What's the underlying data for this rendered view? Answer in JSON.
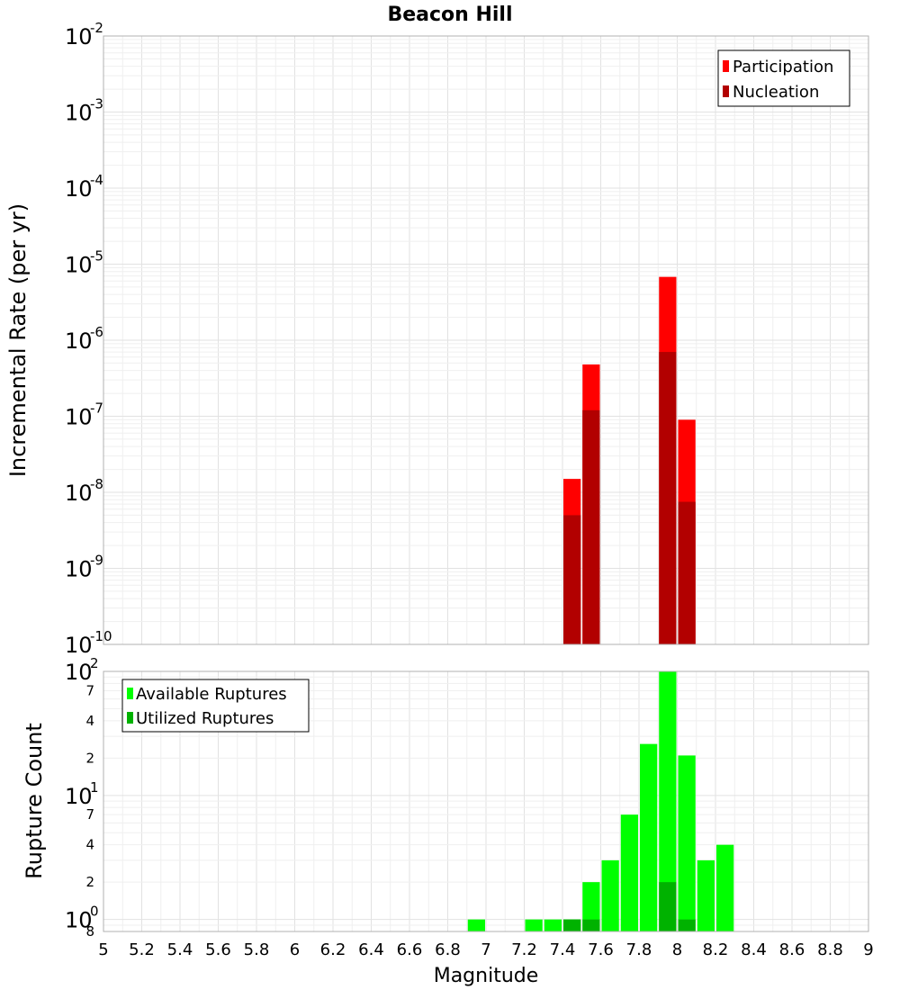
{
  "chart_data": [
    {
      "type": "bar",
      "title": "Beacon Hill",
      "xlabel": "",
      "ylabel": "Incremental Rate (per yr)",
      "yscale": "log",
      "ylim": [
        1e-10,
        0.01
      ],
      "xlim": [
        5,
        9
      ],
      "y_major_ticks": [
        {
          "base": "10",
          "exp": "-10",
          "value": 1e-10
        },
        {
          "base": "10",
          "exp": "-9",
          "value": 1e-09
        },
        {
          "base": "10",
          "exp": "-8",
          "value": 1e-08
        },
        {
          "base": "10",
          "exp": "-7",
          "value": 1e-07
        },
        {
          "base": "10",
          "exp": "-6",
          "value": 1e-06
        },
        {
          "base": "10",
          "exp": "-5",
          "value": 1e-05
        },
        {
          "base": "10",
          "exp": "-4",
          "value": 0.0001
        },
        {
          "base": "10",
          "exp": "-3",
          "value": 0.001
        },
        {
          "base": "10",
          "exp": "-2",
          "value": 0.01
        }
      ],
      "grid": true,
      "legend_position": "top-right",
      "bar_width": 0.1,
      "series": [
        {
          "name": "Participation",
          "color": "#ff0000",
          "x": [
            7.45,
            7.55,
            7.95,
            8.05
          ],
          "values": [
            1.5e-08,
            4.8e-07,
            6.8e-06,
            9e-08
          ]
        },
        {
          "name": "Nucleation",
          "color": "#b20000",
          "x": [
            7.45,
            7.55,
            7.95,
            8.05
          ],
          "values": [
            5e-09,
            1.2e-07,
            7e-07,
            7.5e-09
          ]
        }
      ]
    },
    {
      "type": "bar",
      "title": "",
      "xlabel": "Magnitude",
      "ylabel": "Rupture Count",
      "yscale": "log",
      "ylim": [
        0.8,
        100
      ],
      "xlim": [
        5,
        9
      ],
      "x_ticks": [
        "5",
        "5.2",
        "5.4",
        "5.6",
        "5.8",
        "6",
        "6.2",
        "6.4",
        "6.6",
        "6.8",
        "7",
        "7.2",
        "7.4",
        "7.6",
        "7.8",
        "8",
        "8.2",
        "8.4",
        "8.6",
        "8.8",
        "9"
      ],
      "y_major_ticks": [
        {
          "base": "10",
          "exp": "0",
          "value": 1
        },
        {
          "base": "10",
          "exp": "1",
          "value": 10
        },
        {
          "base": "10",
          "exp": "2",
          "value": 100
        }
      ],
      "y_minor_labels": [
        {
          "label": "8",
          "value": 0.8
        },
        {
          "label": "2",
          "value": 2
        },
        {
          "label": "4",
          "value": 4
        },
        {
          "label": "7",
          "value": 7
        },
        {
          "label": "2",
          "value": 20
        },
        {
          "label": "4",
          "value": 40
        },
        {
          "label": "7",
          "value": 70
        }
      ],
      "grid": true,
      "legend_position": "top-left",
      "bar_width": 0.1,
      "series": [
        {
          "name": "Available Ruptures",
          "color": "#00ff00",
          "x": [
            6.95,
            7.25,
            7.35,
            7.45,
            7.55,
            7.65,
            7.75,
            7.85,
            7.95,
            8.05,
            8.15,
            8.25
          ],
          "values": [
            1,
            1,
            1,
            1,
            2,
            3,
            7,
            26,
            100,
            21,
            3,
            4
          ]
        },
        {
          "name": "Utilized Ruptures",
          "color": "#00b200",
          "x": [
            7.45,
            7.55,
            7.95,
            8.05
          ],
          "values": [
            1,
            1,
            2,
            1
          ]
        }
      ]
    }
  ]
}
